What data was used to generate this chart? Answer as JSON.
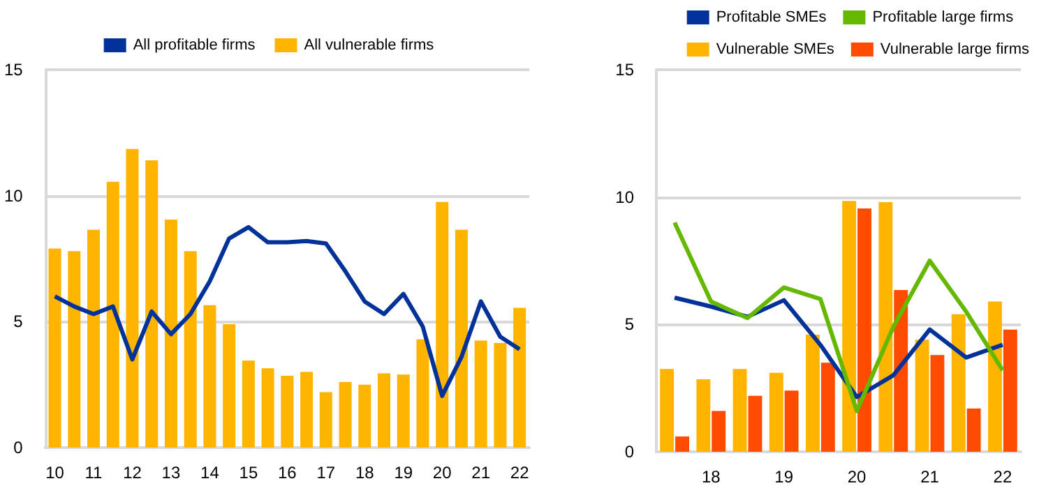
{
  "chart_data": [
    {
      "type": "bar",
      "categories": [
        "10",
        null,
        "11",
        null,
        "12",
        null,
        "13",
        null,
        "14",
        null,
        "15",
        null,
        "16",
        null,
        "17",
        null,
        "18",
        null,
        "19",
        null,
        "20",
        null,
        "21",
        null,
        "22"
      ],
      "series": [
        {
          "name": "All profitable firms",
          "type": "line",
          "color": "#003299",
          "values": [
            6.0,
            5.6,
            5.3,
            5.6,
            3.5,
            5.4,
            4.5,
            5.3,
            6.6,
            8.3,
            8.75,
            8.15,
            8.15,
            8.2,
            8.1,
            7.0,
            5.8,
            5.3,
            6.1,
            4.8,
            2.05,
            3.6,
            5.8,
            4.4,
            3.9
          ]
        },
        {
          "name": "All vulnerable firms",
          "color": "#ffb400",
          "values": [
            7.9,
            7.8,
            8.65,
            10.55,
            11.85,
            11.4,
            9.05,
            7.8,
            5.65,
            4.9,
            3.45,
            3.15,
            2.85,
            3.0,
            2.2,
            2.6,
            2.5,
            2.95,
            2.9,
            4.3,
            9.75,
            8.65,
            4.25,
            4.15,
            5.55
          ]
        }
      ],
      "ylim": [
        0,
        15
      ],
      "yticks": [
        0,
        5,
        10,
        15
      ],
      "grid": "y",
      "legend": "top",
      "marker": "none"
    },
    {
      "type": "bar",
      "categories": [
        null,
        "18",
        null,
        "19",
        null,
        "20",
        null,
        "21",
        null,
        "22"
      ],
      "series": [
        {
          "name": "Profitable SMEs",
          "type": "line",
          "color": "#003299",
          "values": [
            6.05,
            5.7,
            5.3,
            5.95,
            4.2,
            2.15,
            3.0,
            4.8,
            3.7,
            4.2
          ]
        },
        {
          "name": "Profitable large firms",
          "type": "line",
          "color": "#65b800",
          "values": [
            9.0,
            5.9,
            5.25,
            6.45,
            6.0,
            1.6,
            4.9,
            7.5,
            5.5,
            3.2
          ]
        },
        {
          "name": "Vulnerable SMEs",
          "color": "#ffb400",
          "values": [
            3.25,
            2.85,
            3.25,
            3.1,
            4.6,
            9.85,
            9.8,
            4.4,
            5.4,
            5.9
          ]
        },
        {
          "name": "Vulnerable large firms",
          "color": "#ff4b00",
          "values": [
            0.6,
            1.6,
            2.2,
            2.4,
            3.5,
            9.55,
            6.35,
            3.8,
            1.7,
            4.8
          ]
        }
      ],
      "ylim": [
        0,
        15
      ],
      "yticks": [
        0,
        5,
        10,
        15
      ],
      "grid": "y",
      "legend": "top right",
      "marker": "none"
    }
  ]
}
